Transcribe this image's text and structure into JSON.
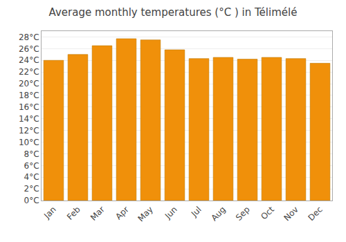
{
  "chart_data": {
    "type": "bar",
    "title": "Average monthly temperatures (°C ) in Télimélé",
    "categories": [
      "Jan",
      "Feb",
      "Mar",
      "Apr",
      "May",
      "Jun",
      "Jul",
      "Aug",
      "Sep",
      "Oct",
      "Nov",
      "Dec"
    ],
    "values": [
      24.0,
      25.0,
      26.5,
      27.7,
      27.5,
      25.8,
      24.3,
      24.5,
      24.2,
      24.5,
      24.3,
      23.5
    ],
    "color": "#F0900A",
    "ylim": [
      0,
      29
    ],
    "yticks": [
      {
        "value": 0,
        "label": "0°C"
      },
      {
        "value": 2,
        "label": "2°C"
      },
      {
        "value": 4,
        "label": "4°C"
      },
      {
        "value": 6,
        "label": "6°C"
      },
      {
        "value": 8,
        "label": "8°C"
      },
      {
        "value": 10,
        "label": "10°C"
      },
      {
        "value": 12,
        "label": "12°C"
      },
      {
        "value": 14,
        "label": "14°C"
      },
      {
        "value": 16,
        "label": "16°C"
      },
      {
        "value": 18,
        "label": "18°C"
      },
      {
        "value": 20,
        "label": "20°C"
      },
      {
        "value": 22,
        "label": "22°C"
      },
      {
        "value": 24,
        "label": "24°C"
      },
      {
        "value": 26,
        "label": "26°C"
      },
      {
        "value": 28,
        "label": "28°C"
      }
    ],
    "grid": true
  }
}
